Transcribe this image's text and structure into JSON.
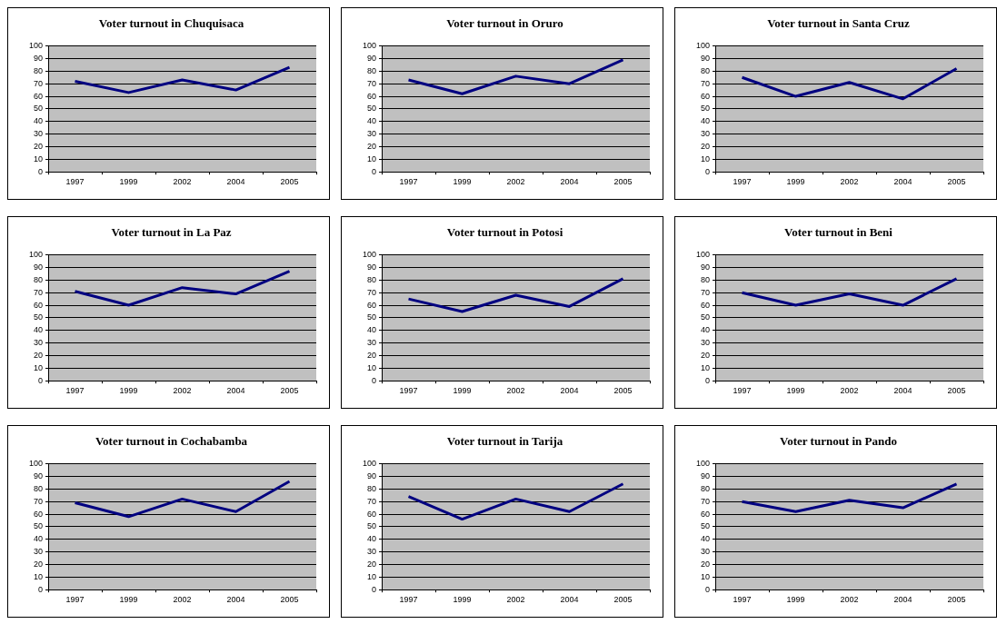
{
  "chart_data": [
    {
      "type": "line",
      "title": "Voter turnout in Chuquisaca",
      "categories": [
        "1997",
        "1999",
        "2002",
        "2004",
        "2005"
      ],
      "series": [
        {
          "color": "#000080",
          "values": [
            72,
            63,
            73,
            65,
            83
          ]
        }
      ],
      "ylim": [
        0,
        100
      ],
      "yticks": [
        0,
        10,
        20,
        30,
        40,
        50,
        60,
        70,
        80,
        90,
        100
      ],
      "grid": "y"
    },
    {
      "type": "line",
      "title": "Voter turnout in Oruro",
      "categories": [
        "1997",
        "1999",
        "2002",
        "2004",
        "2005"
      ],
      "series": [
        {
          "color": "#000080",
          "values": [
            73,
            62,
            76,
            70,
            89
          ]
        }
      ],
      "ylim": [
        0,
        100
      ],
      "yticks": [
        0,
        10,
        20,
        30,
        40,
        50,
        60,
        70,
        80,
        90,
        100
      ],
      "grid": "y"
    },
    {
      "type": "line",
      "title": "Voter turnout in Santa Cruz",
      "categories": [
        "1997",
        "1999",
        "2002",
        "2004",
        "2005"
      ],
      "series": [
        {
          "color": "#000080",
          "values": [
            75,
            60,
            71,
            58,
            82
          ]
        }
      ],
      "ylim": [
        0,
        100
      ],
      "yticks": [
        0,
        10,
        20,
        30,
        40,
        50,
        60,
        70,
        80,
        90,
        100
      ],
      "grid": "y"
    },
    {
      "type": "line",
      "title": "Voter turnout in La Paz",
      "categories": [
        "1997",
        "1999",
        "2002",
        "2004",
        "2005"
      ],
      "series": [
        {
          "color": "#000080",
          "values": [
            71,
            60,
            74,
            69,
            87
          ]
        }
      ],
      "ylim": [
        0,
        100
      ],
      "yticks": [
        0,
        10,
        20,
        30,
        40,
        50,
        60,
        70,
        80,
        90,
        100
      ],
      "grid": "y"
    },
    {
      "type": "line",
      "title": "Voter turnout in Potosi",
      "categories": [
        "1997",
        "1999",
        "2002",
        "2004",
        "2005"
      ],
      "series": [
        {
          "color": "#000080",
          "values": [
            65,
            55,
            68,
            59,
            81
          ]
        }
      ],
      "ylim": [
        0,
        100
      ],
      "yticks": [
        0,
        10,
        20,
        30,
        40,
        50,
        60,
        70,
        80,
        90,
        100
      ],
      "grid": "y"
    },
    {
      "type": "line",
      "title": "Voter turnout in Beni",
      "categories": [
        "1997",
        "1999",
        "2002",
        "2004",
        "2005"
      ],
      "series": [
        {
          "color": "#000080",
          "values": [
            70,
            60,
            69,
            60,
            81
          ]
        }
      ],
      "ylim": [
        0,
        100
      ],
      "yticks": [
        0,
        10,
        20,
        30,
        40,
        50,
        60,
        70,
        80,
        90,
        100
      ],
      "grid": "y"
    },
    {
      "type": "line",
      "title": "Voter turnout in Cochabamba",
      "categories": [
        "1997",
        "1999",
        "2002",
        "2004",
        "2005"
      ],
      "series": [
        {
          "color": "#000080",
          "values": [
            69,
            58,
            72,
            62,
            86
          ]
        }
      ],
      "ylim": [
        0,
        100
      ],
      "yticks": [
        0,
        10,
        20,
        30,
        40,
        50,
        60,
        70,
        80,
        90,
        100
      ],
      "grid": "y"
    },
    {
      "type": "line",
      "title": "Voter turnout in Tarija",
      "categories": [
        "1997",
        "1999",
        "2002",
        "2004",
        "2005"
      ],
      "series": [
        {
          "color": "#000080",
          "values": [
            74,
            56,
            72,
            62,
            84
          ]
        }
      ],
      "ylim": [
        0,
        100
      ],
      "yticks": [
        0,
        10,
        20,
        30,
        40,
        50,
        60,
        70,
        80,
        90,
        100
      ],
      "grid": "y"
    },
    {
      "type": "line",
      "title": "Voter turnout in Pando",
      "categories": [
        "1997",
        "1999",
        "2002",
        "2004",
        "2005"
      ],
      "series": [
        {
          "color": "#000080",
          "values": [
            70,
            62,
            71,
            65,
            84
          ]
        }
      ],
      "ylim": [
        0,
        100
      ],
      "yticks": [
        0,
        10,
        20,
        30,
        40,
        50,
        60,
        70,
        80,
        90,
        100
      ],
      "grid": "y"
    }
  ]
}
